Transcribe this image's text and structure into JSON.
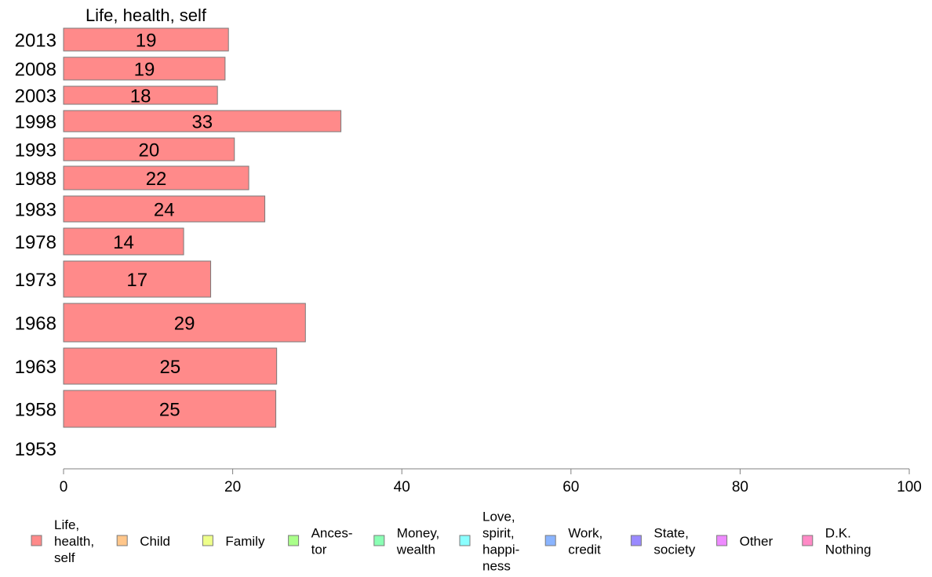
{
  "chart_data": {
    "type": "bar",
    "orientation": "horizontal",
    "stacked": true,
    "title": "Life, health, self",
    "xlabel": "",
    "ylabel": "",
    "xlim": [
      0,
      100
    ],
    "x_ticks": [
      0,
      20,
      40,
      60,
      80,
      100
    ],
    "grid": false,
    "legend_position": "bottom",
    "categories": [
      "2013",
      "2008",
      "2003",
      "1998",
      "1993",
      "1988",
      "1983",
      "1978",
      "1973",
      "1968",
      "1963",
      "1958",
      "1953"
    ],
    "series": [
      {
        "name": "Life, health, self",
        "color": "#ff8a8a",
        "values": [
          19.5,
          19.1,
          18.2,
          32.8,
          20.2,
          21.9,
          23.8,
          14.2,
          17.4,
          28.6,
          25.2,
          25.1,
          null
        ],
        "labels": [
          "19",
          "19",
          "18",
          "33",
          "20",
          "22",
          "24",
          "14",
          "17",
          "29",
          "25",
          "25",
          ""
        ]
      }
    ],
    "legend": [
      {
        "lines": [
          "Life,",
          "health,",
          "self"
        ],
        "color": "#ff8a8a"
      },
      {
        "lines": [
          "Child"
        ],
        "color": "#ffc68a"
      },
      {
        "lines": [
          "Family"
        ],
        "color": "#eeff8a"
      },
      {
        "lines": [
          "Ances-",
          "tor"
        ],
        "color": "#aaff8a"
      },
      {
        "lines": [
          "Money,",
          "wealth"
        ],
        "color": "#8affb4"
      },
      {
        "lines": [
          "Love,",
          "spirit,",
          "happi-",
          "ness"
        ],
        "color": "#8affff"
      },
      {
        "lines": [
          "Work,",
          "credit"
        ],
        "color": "#8ab4ff"
      },
      {
        "lines": [
          "State,",
          "society"
        ],
        "color": "#9a8aff"
      },
      {
        "lines": [
          "Other"
        ],
        "color": "#ee8aff"
      },
      {
        "lines": [
          "D.K.",
          "Nothing"
        ],
        "color": "#ff8ac6"
      }
    ]
  }
}
